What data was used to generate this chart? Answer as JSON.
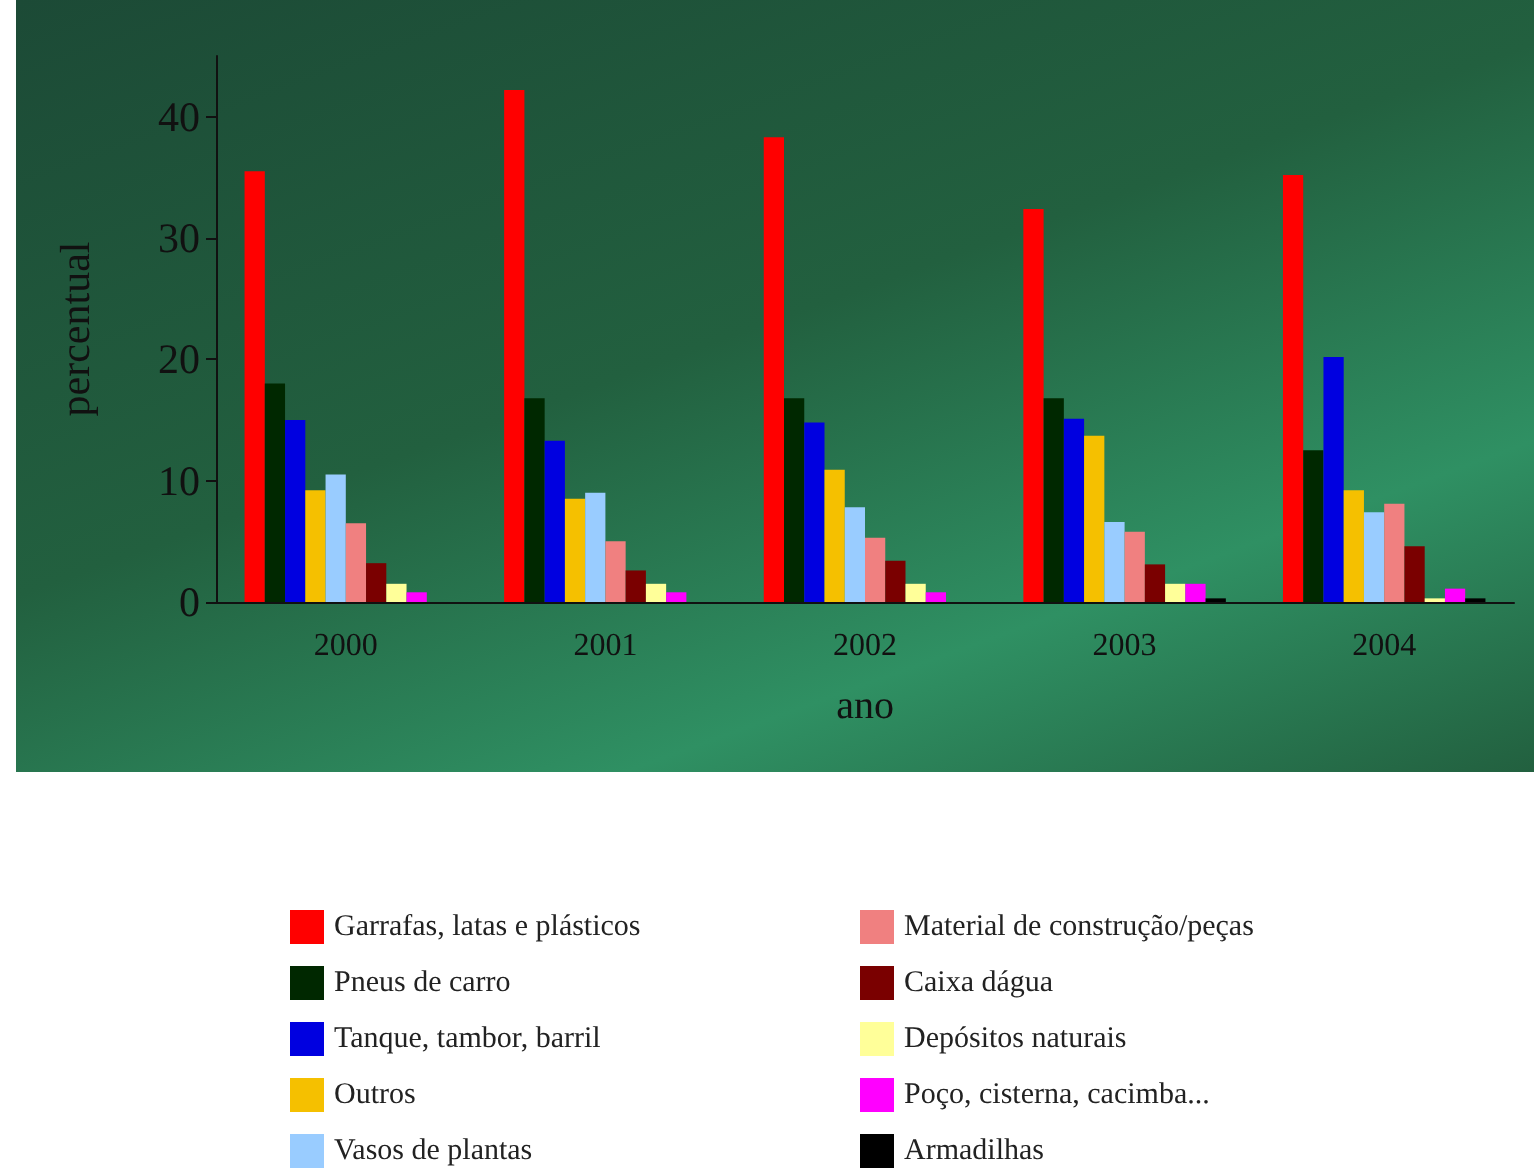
{
  "chart_data": {
    "type": "bar",
    "xlabel": "ano",
    "ylabel": "percentual",
    "categories": [
      "2000",
      "2001",
      "2002",
      "2003",
      "2004"
    ],
    "ylim": [
      0,
      45
    ],
    "yticks": [
      0,
      10,
      20,
      30,
      40
    ],
    "grid": false,
    "legend": "bottom",
    "series": [
      {
        "name": "Garrafas, latas e plásticos",
        "color": "#ff0000",
        "values": [
          35.5,
          42.2,
          38.3,
          32.4,
          35.2
        ]
      },
      {
        "name": "Pneus de carro",
        "color": "#002800",
        "values": [
          18,
          16.8,
          16.8,
          16.8,
          12.5
        ]
      },
      {
        "name": "Tanque, tambor, barril",
        "color": "#0000e0",
        "values": [
          15,
          13.3,
          14.8,
          15.1,
          20.2
        ]
      },
      {
        "name": "Outros",
        "color": "#f5c000",
        "values": [
          9.2,
          8.5,
          10.9,
          13.7,
          9.2
        ]
      },
      {
        "name": "Vasos de plantas",
        "color": "#99ccff",
        "values": [
          10.5,
          9,
          7.8,
          6.6,
          7.4
        ]
      },
      {
        "name": "Material de construção/peças",
        "color": "#f08080",
        "values": [
          6.5,
          5,
          5.3,
          5.8,
          8.1
        ]
      },
      {
        "name": "Caixa dágua",
        "color": "#7a0000",
        "values": [
          3.2,
          2.6,
          3.4,
          3.1,
          4.6
        ]
      },
      {
        "name": "Depósitos naturais",
        "color": "#ffff99",
        "values": [
          1.5,
          1.5,
          1.5,
          1.5,
          0.3
        ]
      },
      {
        "name": "Poço, cisterna, cacimba...",
        "color": "#ff00ff",
        "values": [
          0.8,
          0.8,
          0.8,
          1.5,
          1.1
        ]
      },
      {
        "name": "Armadilhas",
        "color": "#000000",
        "values": [
          0,
          0,
          0,
          0.3,
          0.3
        ]
      }
    ]
  }
}
